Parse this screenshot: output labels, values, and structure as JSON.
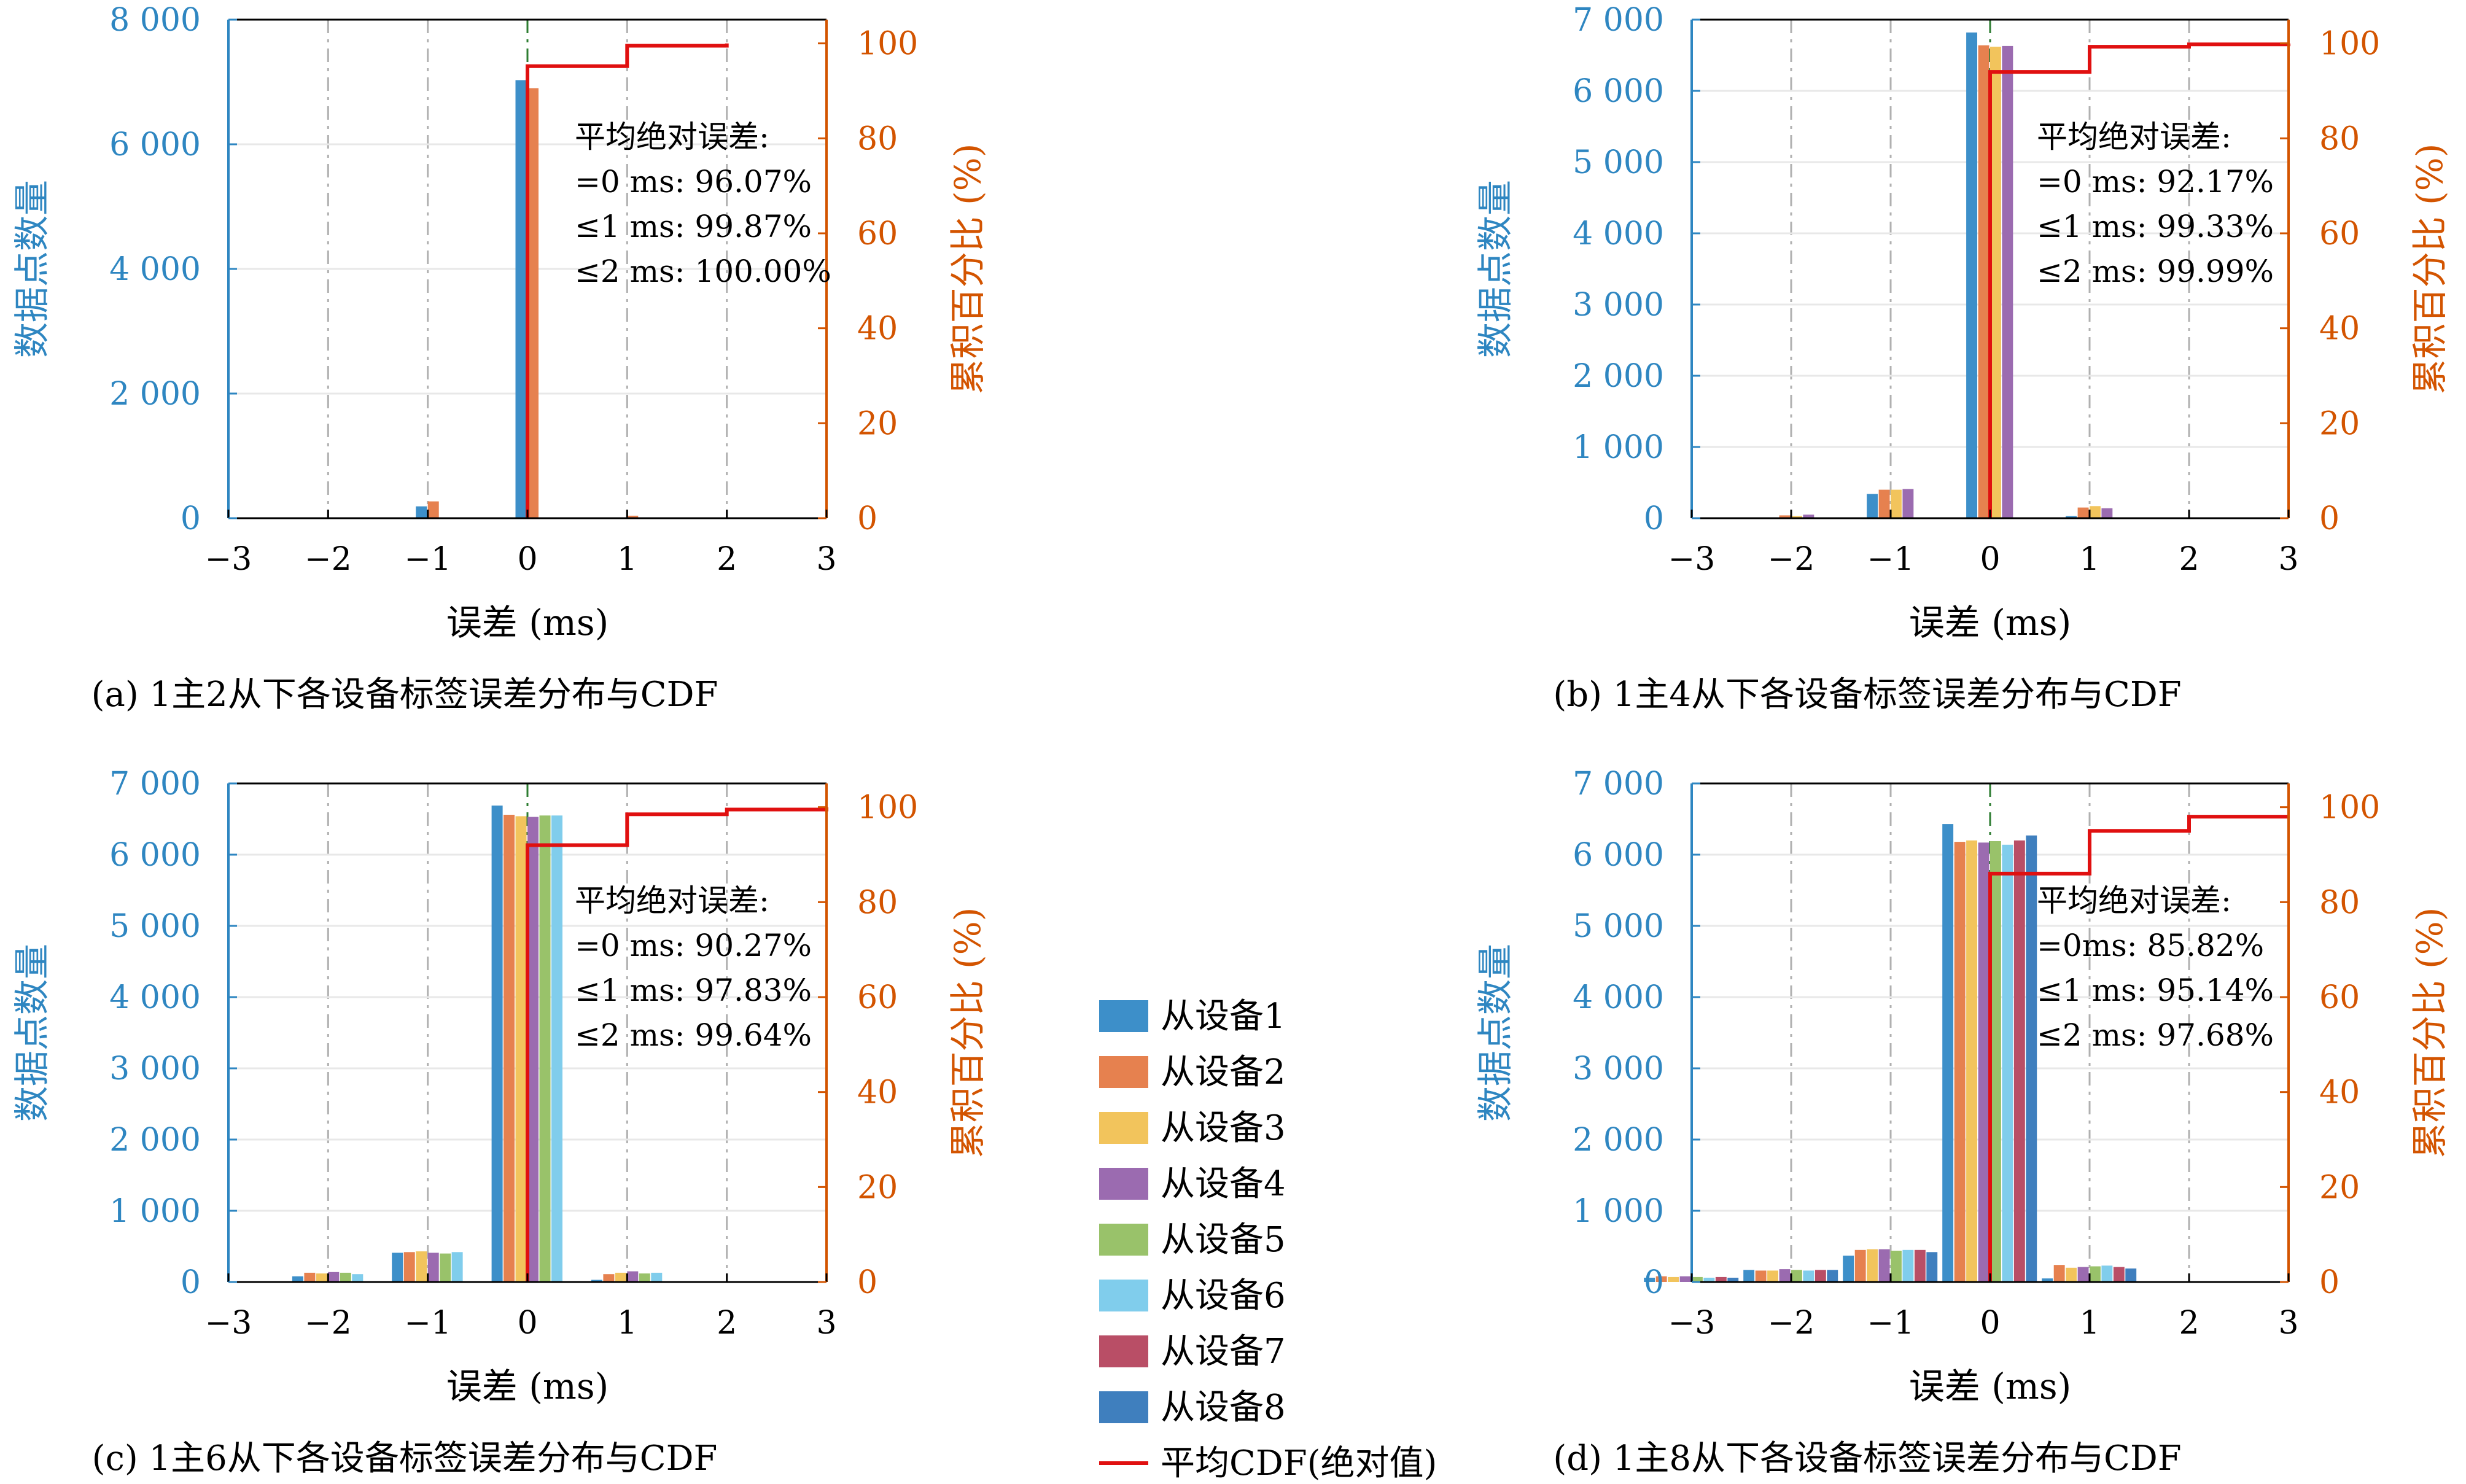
{
  "colors": {
    "left_axis": "#2e86c1",
    "right_axis": "#d35400",
    "cdf_line": "#e01010",
    "zero_line": "#2e7d32",
    "grid": "#b0b0b0"
  },
  "legend": {
    "entries": [
      {
        "label": "从设备1",
        "color": "#3d8fc9"
      },
      {
        "label": "从设备2",
        "color": "#e6814f"
      },
      {
        "label": "从设备3",
        "color": "#f2c45c"
      },
      {
        "label": "从设备4",
        "color": "#9b6bb0"
      },
      {
        "label": "从设备5",
        "color": "#99c26a"
      },
      {
        "label": "从设备6",
        "color": "#80cdec"
      },
      {
        "label": "从设备7",
        "color": "#b94e66"
      },
      {
        "label": "从设备8",
        "color": "#3f7fbe"
      }
    ],
    "cdf_label": "平均CDF(绝对值)"
  },
  "chart_data": [
    {
      "type": "bar",
      "caption": "(a) 1主2从下各设备标签误差分布与CDF",
      "xlabel": "误差 (ms)",
      "ylabel": "数据点数量",
      "ylabel_right": "累积百分比 (%)",
      "xlim": [
        -3,
        3
      ],
      "ylim": [
        0,
        8000
      ],
      "yticks": [
        0,
        2000,
        4000,
        6000,
        8000
      ],
      "ytick_labels": [
        "0",
        "2 000",
        "4 000",
        "6 000",
        "8 000"
      ],
      "y2lim": [
        0,
        105
      ],
      "y2ticks": [
        0,
        20,
        40,
        60,
        80,
        100
      ],
      "xticks": [
        -3,
        -2,
        -1,
        0,
        1,
        2,
        3
      ],
      "xtick_labels": [
        "−3",
        "−2",
        "−1",
        "0",
        "1",
        "2",
        "3"
      ],
      "categories": [
        -1,
        0,
        1
      ],
      "series": [
        {
          "name": "从设备1",
          "values": [
            190,
            7030,
            0
          ]
        },
        {
          "name": "从设备2",
          "values": [
            270,
            6900,
            40
          ]
        }
      ],
      "cdf": {
        "x": [
          0,
          1,
          2
        ],
        "y": [
          95.2,
          99.5,
          100
        ]
      },
      "annotation": [
        "平均绝对误差:",
        "=0 ms: 96.07%",
        "≤1 ms: 99.87%",
        "≤2 ms: 100.00%"
      ]
    },
    {
      "type": "bar",
      "caption": "(b) 1主4从下各设备标签误差分布与CDF",
      "xlabel": "误差 (ms)",
      "ylabel": "数据点数量",
      "ylabel_right": "累积百分比 (%)",
      "xlim": [
        -3,
        3
      ],
      "ylim": [
        0,
        7000
      ],
      "yticks": [
        0,
        1000,
        2000,
        3000,
        4000,
        5000,
        6000,
        7000
      ],
      "ytick_labels": [
        "0",
        "1 000",
        "2 000",
        "3 000",
        "4 000",
        "5 000",
        "6 000",
        "7 000"
      ],
      "y2lim": [
        0,
        105
      ],
      "y2ticks": [
        0,
        20,
        40,
        60,
        80,
        100
      ],
      "xticks": [
        -3,
        -2,
        -1,
        0,
        1,
        2,
        3
      ],
      "xtick_labels": [
        "−3",
        "−2",
        "−1",
        "0",
        "1",
        "2",
        "3"
      ],
      "categories": [
        -2,
        -1,
        0,
        1
      ],
      "series": [
        {
          "name": "从设备1",
          "values": [
            0,
            340,
            6820,
            30
          ]
        },
        {
          "name": "从设备2",
          "values": [
            40,
            400,
            6640,
            150
          ]
        },
        {
          "name": "从设备3",
          "values": [
            30,
            400,
            6620,
            170
          ]
        },
        {
          "name": "从设备4",
          "values": [
            50,
            410,
            6630,
            140
          ]
        }
      ],
      "cdf": {
        "x": [
          0,
          1,
          2,
          3
        ],
        "y": [
          94,
          99.3,
          99.8,
          100
        ]
      },
      "annotation": [
        "平均绝对误差:",
        "=0 ms: 92.17%",
        "≤1 ms: 99.33%",
        "≤2 ms: 99.99%"
      ]
    },
    {
      "type": "bar",
      "caption": "(c) 1主6从下各设备标签误差分布与CDF",
      "xlabel": "误差 (ms)",
      "ylabel": "数据点数量",
      "ylabel_right": "累积百分比 (%)",
      "xlim": [
        -3,
        3
      ],
      "ylim": [
        0,
        7000
      ],
      "yticks": [
        0,
        1000,
        2000,
        3000,
        4000,
        5000,
        6000,
        7000
      ],
      "ytick_labels": [
        "0",
        "1 000",
        "2 000",
        "3 000",
        "4 000",
        "5 000",
        "6 000",
        "7 000"
      ],
      "y2lim": [
        0,
        105
      ],
      "y2ticks": [
        0,
        20,
        40,
        60,
        80,
        100
      ],
      "xticks": [
        -3,
        -2,
        -1,
        0,
        1,
        2,
        3
      ],
      "xtick_labels": [
        "−3",
        "−2",
        "−1",
        "0",
        "1",
        "2",
        "3"
      ],
      "categories": [
        -2,
        -1,
        0,
        1
      ],
      "series": [
        {
          "name": "从设备1",
          "values": [
            80,
            410,
            6690,
            30
          ]
        },
        {
          "name": "从设备2",
          "values": [
            130,
            420,
            6560,
            110
          ]
        },
        {
          "name": "从设备3",
          "values": [
            120,
            430,
            6540,
            130
          ]
        },
        {
          "name": "从设备4",
          "values": [
            140,
            410,
            6530,
            150
          ]
        },
        {
          "name": "从设备5",
          "values": [
            130,
            400,
            6550,
            120
          ]
        },
        {
          "name": "从设备6",
          "values": [
            110,
            420,
            6550,
            130
          ]
        }
      ],
      "cdf": {
        "x": [
          0,
          1,
          2,
          3
        ],
        "y": [
          92,
          98.5,
          99.5,
          100
        ]
      },
      "annotation": [
        "平均绝对误差:",
        "=0 ms: 90.27%",
        "≤1 ms: 97.83%",
        "≤2 ms: 99.64%"
      ]
    },
    {
      "type": "bar",
      "caption": "(d) 1主8从下各设备标签误差分布与CDF",
      "xlabel": "误差 (ms)",
      "ylabel": "数据点数量",
      "ylabel_right": "累积百分比 (%)",
      "xlim": [
        -3,
        3
      ],
      "ylim": [
        0,
        7000
      ],
      "yticks": [
        0,
        1000,
        2000,
        3000,
        4000,
        5000,
        6000,
        7000
      ],
      "ytick_labels": [
        "0",
        "1 000",
        "2 000",
        "3 000",
        "4 000",
        "5 000",
        "6 000",
        "7 000"
      ],
      "y2lim": [
        0,
        105
      ],
      "y2ticks": [
        0,
        20,
        40,
        60,
        80,
        100
      ],
      "xticks": [
        -3,
        -2,
        -1,
        0,
        1,
        2,
        3
      ],
      "xtick_labels": [
        "−3",
        "−2",
        "−1",
        "0",
        "1",
        "2",
        "3"
      ],
      "categories": [
        -3,
        -2,
        -1,
        0,
        1
      ],
      "series": [
        {
          "name": "从设备1",
          "values": [
            60,
            170,
            370,
            6430,
            50
          ]
        },
        {
          "name": "从设备2",
          "values": [
            80,
            160,
            450,
            6180,
            240
          ]
        },
        {
          "name": "从设备3",
          "values": [
            70,
            160,
            460,
            6200,
            200
          ]
        },
        {
          "name": "从设备4",
          "values": [
            80,
            180,
            460,
            6170,
            210
          ]
        },
        {
          "name": "从设备5",
          "values": [
            70,
            170,
            440,
            6190,
            220
          ]
        },
        {
          "name": "从设备6",
          "values": [
            60,
            160,
            450,
            6140,
            230
          ]
        },
        {
          "name": "从设备7",
          "values": [
            70,
            170,
            450,
            6200,
            210
          ]
        },
        {
          "name": "从设备8",
          "values": [
            60,
            170,
            420,
            6270,
            190
          ]
        }
      ],
      "cdf": {
        "x": [
          0,
          1,
          2,
          3
        ],
        "y": [
          86,
          95,
          98,
          98
        ]
      },
      "annotation": [
        "平均绝对误差:",
        "=0ms: 85.82%",
        "≤1 ms: 95.14%",
        "≤2 ms: 97.68%"
      ]
    }
  ]
}
